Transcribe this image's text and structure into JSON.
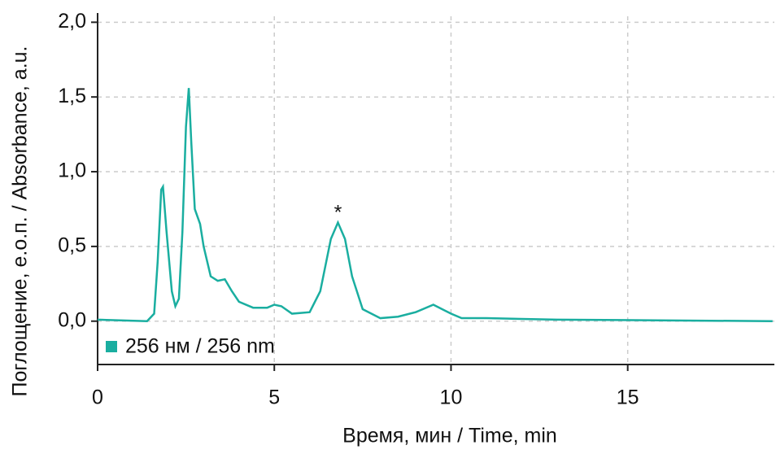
{
  "chart_data": {
    "type": "line",
    "x_label": "Время, мин / Time, min",
    "y_label": "Поглощение, е.о.п. / Absorbance, a.u.",
    "annotation": {
      "text": "*",
      "x": 6.8,
      "y": 0.75
    },
    "legend": "lower left",
    "grid": true,
    "xlim": [
      0,
      19.15
    ],
    "ylim": [
      -0.29,
      2.04
    ],
    "xticks": [
      0,
      5,
      10,
      15
    ],
    "yticks": [
      {
        "value": 0,
        "label": "0,0"
      },
      {
        "value": 0.5,
        "label": "0,5"
      },
      {
        "value": 1,
        "label": "1,0"
      },
      {
        "value": 1.5,
        "label": "1,5"
      },
      {
        "value": 2,
        "label": "2,0"
      }
    ],
    "x": [
      0,
      1.4,
      1.6,
      1.7,
      1.8,
      1.85,
      1.95,
      2.1,
      2.2,
      2.3,
      2.4,
      2.5,
      2.58,
      2.65,
      2.75,
      2.9,
      3.0,
      3.2,
      3.4,
      3.6,
      3.8,
      4.0,
      4.4,
      4.8,
      5.0,
      5.2,
      5.5,
      6.0,
      6.3,
      6.6,
      6.8,
      7.0,
      7.2,
      7.5,
      8.0,
      8.5,
      9.0,
      9.5,
      10.0,
      10.3,
      11,
      13,
      19.1
    ],
    "series": [
      {
        "name": "256 нм / 256 nm",
        "color": "#1aaea0",
        "values": [
          0.01,
          0.0,
          0.05,
          0.4,
          0.88,
          0.9,
          0.6,
          0.2,
          0.1,
          0.15,
          0.6,
          1.3,
          1.56,
          1.2,
          0.75,
          0.65,
          0.5,
          0.3,
          0.27,
          0.28,
          0.2,
          0.13,
          0.09,
          0.09,
          0.11,
          0.1,
          0.05,
          0.06,
          0.2,
          0.55,
          0.66,
          0.55,
          0.3,
          0.08,
          0.02,
          0.03,
          0.06,
          0.11,
          0.05,
          0.02,
          0.02,
          0.01,
          0.0
        ]
      }
    ]
  }
}
